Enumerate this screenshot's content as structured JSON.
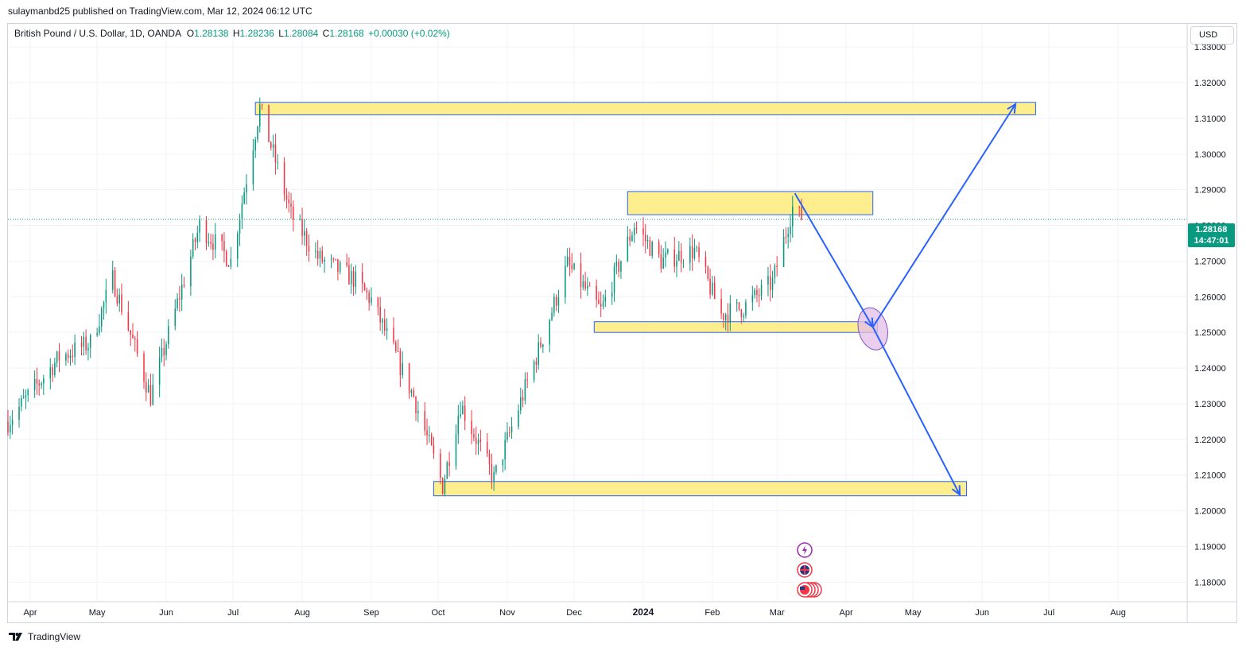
{
  "header": {
    "publish_info": "sulaymanbd25 published on TradingView.com, Mar 12, 2024 06:12 UTC"
  },
  "legend": {
    "symbol": "British Pound / U.S. Dollar, 1D, OANDA",
    "open_label": "O",
    "open": "1.28138",
    "high_label": "H",
    "high": "1.28236",
    "low_label": "L",
    "low": "1.28084",
    "close_label": "C",
    "close": "1.28168",
    "change": "+0.00030 (+0.02%)"
  },
  "price_scale": {
    "currency": "USD",
    "last_price": "1.28168",
    "countdown": "14:47:01"
  },
  "footer": {
    "brand": "TradingView"
  },
  "colors": {
    "up": "#089981",
    "down": "#f23645",
    "zone_fill": "#ffeb7a",
    "zone_border": "#2962ff",
    "arrow": "#2962ff",
    "ellipse_fill": "#e1bee7",
    "ellipse_border": "#7e57c2"
  },
  "chart_data": {
    "type": "candlestick",
    "symbol": "GBP/USD",
    "timeframe": "1D",
    "y_ticks": [
      "1.33000",
      "1.32000",
      "1.31000",
      "1.30000",
      "1.29000",
      "1.28000",
      "1.27000",
      "1.26000",
      "1.25000",
      "1.24000",
      "1.23000",
      "1.22000",
      "1.21000",
      "1.20000",
      "1.19000",
      "1.18000"
    ],
    "ylim": [
      1.1745,
      1.3365
    ],
    "x_ticks": [
      {
        "label": "Apr",
        "date": "2023-04-01"
      },
      {
        "label": "May",
        "date": "2023-05-01"
      },
      {
        "label": "Jun",
        "date": "2023-06-01"
      },
      {
        "label": "Jul",
        "date": "2023-07-01"
      },
      {
        "label": "Aug",
        "date": "2023-08-01"
      },
      {
        "label": "Sep",
        "date": "2023-09-01"
      },
      {
        "label": "Oct",
        "date": "2023-10-01"
      },
      {
        "label": "Nov",
        "date": "2023-11-01"
      },
      {
        "label": "Dec",
        "date": "2023-12-01"
      },
      {
        "label": "2024",
        "date": "2024-01-01",
        "bold": true
      },
      {
        "label": "Feb",
        "date": "2024-02-01"
      },
      {
        "label": "Mar",
        "date": "2024-03-01"
      },
      {
        "label": "Apr",
        "date": "2024-04-01"
      },
      {
        "label": "May",
        "date": "2024-05-01"
      },
      {
        "label": "Jun",
        "date": "2024-06-01"
      },
      {
        "label": "Jul",
        "date": "2024-07-01"
      },
      {
        "label": "Aug",
        "date": "2024-08-01"
      }
    ],
    "xlim": [
      "2023-03-22",
      "2024-09-01"
    ],
    "price_path": [
      [
        "2023-03-22",
        1.225
      ],
      [
        "2023-04-14",
        1.243
      ],
      [
        "2023-04-28",
        1.247
      ],
      [
        "2023-05-08",
        1.265
      ],
      [
        "2023-05-25",
        1.232
      ],
      [
        "2023-06-16",
        1.28
      ],
      [
        "2023-06-30",
        1.27
      ],
      [
        "2023-07-13",
        1.313
      ],
      [
        "2023-07-27",
        1.283
      ],
      [
        "2023-08-08",
        1.271
      ],
      [
        "2023-08-24",
        1.265
      ],
      [
        "2023-09-01",
        1.259
      ],
      [
        "2023-09-20",
        1.232
      ],
      [
        "2023-10-03",
        1.207
      ],
      [
        "2023-10-11",
        1.23
      ],
      [
        "2023-10-26",
        1.209
      ],
      [
        "2023-11-15",
        1.245
      ],
      [
        "2023-11-28",
        1.269
      ],
      [
        "2023-12-13",
        1.256
      ],
      [
        "2023-12-28",
        1.28
      ],
      [
        "2024-01-09",
        1.27
      ],
      [
        "2024-01-24",
        1.273
      ],
      [
        "2024-02-05",
        1.255
      ],
      [
        "2024-02-15",
        1.257
      ],
      [
        "2024-02-28",
        1.264
      ],
      [
        "2024-03-08",
        1.285
      ],
      [
        "2024-03-12",
        1.28168
      ]
    ],
    "last_close": 1.28168,
    "zones": [
      {
        "name": "resistance-top",
        "x0": "2023-07-11",
        "x1": "2024-06-25",
        "y0": 1.311,
        "y1": 1.3145
      },
      {
        "name": "resistance-mid",
        "x0": "2023-12-25",
        "x1": "2024-04-13",
        "y0": 1.283,
        "y1": 1.2895
      },
      {
        "name": "support-mid",
        "x0": "2023-12-10",
        "x1": "2024-04-15",
        "y0": 1.25,
        "y1": 1.253
      },
      {
        "name": "support-bottom",
        "x0": "2023-09-29",
        "x1": "2024-05-25",
        "y0": 1.2042,
        "y1": 1.2082
      }
    ],
    "arrows": [
      {
        "from": [
          "2024-03-09",
          1.289
        ],
        "to": [
          "2024-04-13",
          1.2515
        ]
      },
      {
        "from": [
          "2024-04-13",
          1.2515
        ],
        "to": [
          "2024-06-16",
          1.314
        ]
      },
      {
        "from": [
          "2024-04-13",
          1.2515
        ],
        "to": [
          "2024-05-22",
          1.2045
        ]
      }
    ],
    "ellipse": {
      "date": "2024-04-13",
      "price": 1.251
    },
    "event_markers": [
      "lightning-icon",
      "uk-flag-icon",
      "us-flag-icon"
    ]
  }
}
